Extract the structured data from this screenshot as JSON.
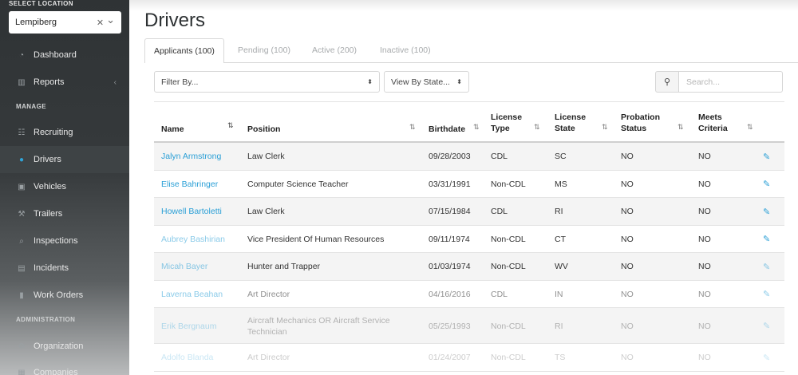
{
  "sidebar": {
    "location_label": "SELECT LOCATION",
    "location_value": "Lempiberg",
    "clear_glyph": "✕",
    "dropdown_glyph": "⌄",
    "nav_top": [
      {
        "label": "Dashboard",
        "icon": "dashboard-icon"
      },
      {
        "label": "Reports",
        "icon": "bar-chart-icon"
      }
    ],
    "manage_header": "MANAGE",
    "nav_manage": [
      {
        "label": "Recruiting",
        "icon": "users-icon"
      },
      {
        "label": "Drivers",
        "icon": "user-icon"
      },
      {
        "label": "Vehicles",
        "icon": "truck-icon"
      },
      {
        "label": "Trailers",
        "icon": "wrench-icon"
      },
      {
        "label": "Inspections",
        "icon": "search-icon"
      },
      {
        "label": "Incidents",
        "icon": "incident-icon"
      },
      {
        "label": "Work Orders",
        "icon": "file-icon"
      }
    ],
    "admin_header": "ADMINISTRATION",
    "nav_admin": [
      {
        "label": "Organization",
        "icon": "cogs-icon"
      },
      {
        "label": "Companies",
        "icon": "building-icon"
      }
    ]
  },
  "page": {
    "title": "Drivers",
    "tabs": [
      "Applicants (100)",
      "Pending (100)",
      "Active (200)",
      "Inactive (100)"
    ]
  },
  "filters": {
    "filter_by": "Filter By...",
    "view_by_state": "View By State...",
    "search_placeholder": "Search..."
  },
  "table": {
    "headers": {
      "name": "Name",
      "position": "Position",
      "birthdate": "Birthdate",
      "license_type_1": "License",
      "license_type_2": "Type",
      "license_state_1": "License",
      "license_state_2": "State",
      "probation_1": "Probation",
      "probation_2": "Status",
      "meets_1": "Meets",
      "meets_2": "Criteria"
    },
    "rows": [
      {
        "name": "Jalyn Armstrong",
        "position": "Law Clerk",
        "birthdate": "09/28/2003",
        "license_type": "CDL",
        "license_state": "SC",
        "probation": "NO",
        "meets": "NO"
      },
      {
        "name": "Elise Bahringer",
        "position": "Computer Science Teacher",
        "birthdate": "03/31/1991",
        "license_type": "Non-CDL",
        "license_state": "MS",
        "probation": "NO",
        "meets": "NO"
      },
      {
        "name": "Howell Bartoletti",
        "position": "Law Clerk",
        "birthdate": "07/15/1984",
        "license_type": "CDL",
        "license_state": "RI",
        "probation": "NO",
        "meets": "NO"
      },
      {
        "name": "Aubrey Bashirian",
        "position": "Vice President Of Human Resources",
        "birthdate": "09/11/1974",
        "license_type": "Non-CDL",
        "license_state": "CT",
        "probation": "NO",
        "meets": "NO"
      },
      {
        "name": "Micah Bayer",
        "position": "Hunter and Trapper",
        "birthdate": "01/03/1974",
        "license_type": "Non-CDL",
        "license_state": "WV",
        "probation": "NO",
        "meets": "NO"
      },
      {
        "name": "Laverna Beahan",
        "position": "Art Director",
        "birthdate": "04/16/2016",
        "license_type": "CDL",
        "license_state": "IN",
        "probation": "NO",
        "meets": "NO"
      },
      {
        "name": "Erik Bergnaum",
        "position": "Aircraft Mechanics OR Aircraft Service Technician",
        "birthdate": "05/25/1993",
        "license_type": "Non-CDL",
        "license_state": "RI",
        "probation": "NO",
        "meets": "NO"
      },
      {
        "name": "Adolfo Blanda",
        "position": "Art Director",
        "birthdate": "01/24/2007",
        "license_type": "Non-CDL",
        "license_state": "TS",
        "probation": "NO",
        "meets": "NO"
      }
    ]
  },
  "colors": {
    "link": "#2a9fd6",
    "sidebar_bg": "#2f3335",
    "active_item": "#3e4345"
  }
}
